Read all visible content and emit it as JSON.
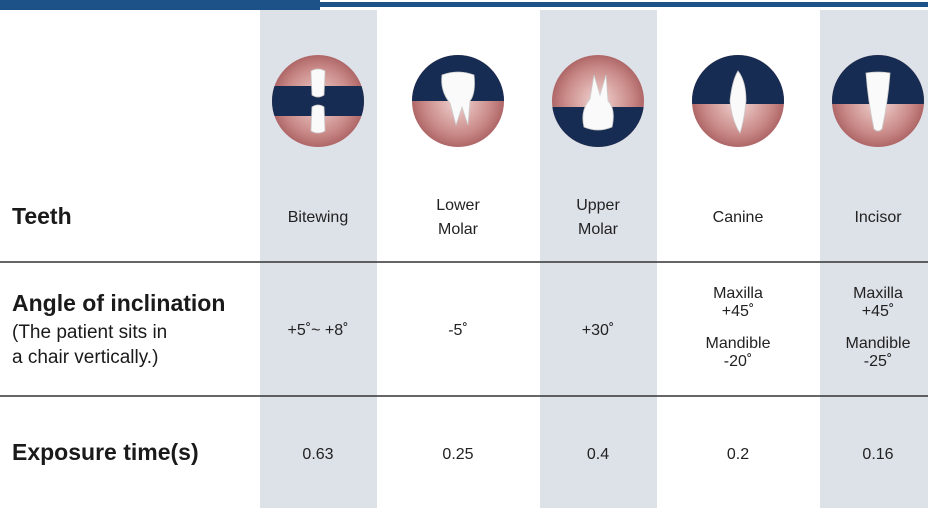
{
  "row_labels": {
    "teeth": "Teeth",
    "angle": {
      "title": "Angle of inclination",
      "note": [
        "(The patient sits in",
        "a chair vertically.)"
      ]
    },
    "exposure": "Exposure time(s)"
  },
  "columns": [
    {
      "name": [
        "Bitewing"
      ],
      "angle": [
        [
          "+5˚~ +8˚"
        ]
      ],
      "exposure": 0.63
    },
    {
      "name": [
        "Lower",
        "Molar"
      ],
      "angle": [
        [
          "-5˚"
        ]
      ],
      "exposure": 0.25
    },
    {
      "name": [
        "Upper",
        "Molar"
      ],
      "angle": [
        [
          "+30˚"
        ]
      ],
      "exposure": 0.4
    },
    {
      "name": [
        "Canine"
      ],
      "angle": [
        [
          "Maxilla",
          "+45˚"
        ],
        [
          "Mandible",
          "-20˚"
        ]
      ],
      "exposure": 0.2
    },
    {
      "name": [
        "Incisor"
      ],
      "angle": [
        [
          "Maxilla",
          "+45˚"
        ],
        [
          "Mandible",
          "-25˚"
        ]
      ],
      "exposure": 0.16
    }
  ]
}
